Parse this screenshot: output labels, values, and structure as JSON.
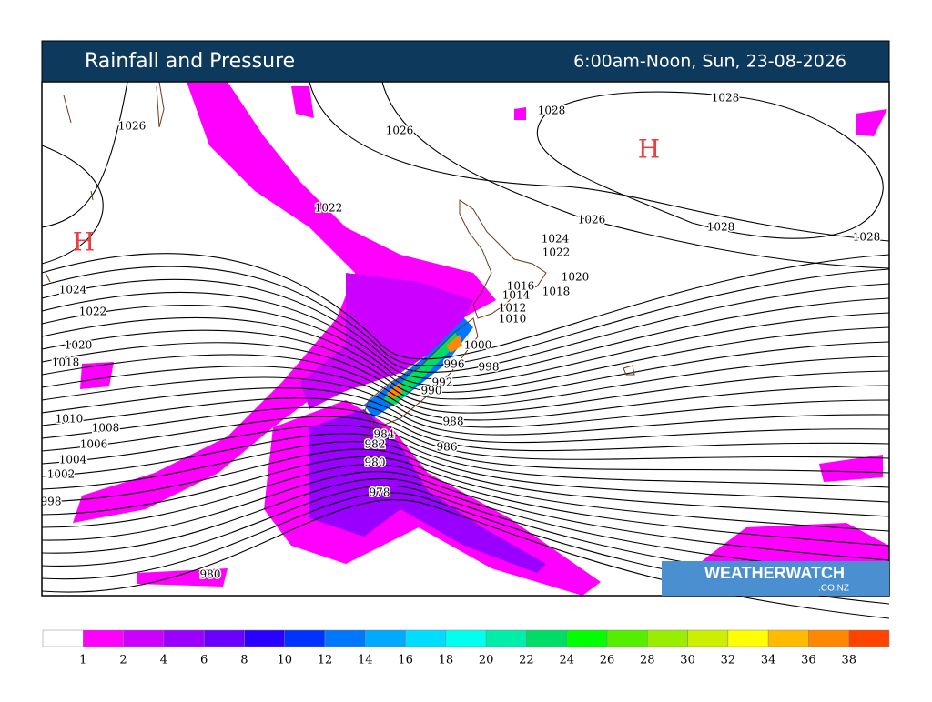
{
  "header": {
    "title": "Rainfall and Pressure",
    "subtitle": "6:00am-Noon, Sun, 23-08-2026"
  },
  "map": {
    "highs": [
      "H",
      "H"
    ],
    "isobar_labels": [
      1026,
      1026,
      1028,
      1028,
      1022,
      1026,
      1028,
      1028,
      1024,
      1022,
      1020,
      1018,
      1016,
      1014,
      1012,
      1010,
      1024,
      1022,
      1020,
      1018,
      1010,
      1008,
      1006,
      1004,
      1002,
      998,
      1000,
      998,
      996,
      992,
      990,
      988,
      986,
      984,
      982,
      980,
      978,
      980
    ]
  },
  "logo": {
    "name": "WEATHERWATCH",
    "domain": ".CO.NZ"
  },
  "legend": {
    "ticks": [
      1,
      2,
      4,
      6,
      8,
      10,
      12,
      14,
      16,
      18,
      20,
      22,
      24,
      26,
      28,
      30,
      32,
      34,
      36,
      38
    ],
    "colors": [
      "#ffffff",
      "#ff00ff",
      "#cc00ff",
      "#9900ff",
      "#6a00ff",
      "#2a00ff",
      "#0033ff",
      "#0077ff",
      "#00aaff",
      "#00ddff",
      "#00ffee",
      "#00eeaa",
      "#00dd66",
      "#00ff00",
      "#55ee00",
      "#99ee00",
      "#ccee00",
      "#ffff00",
      "#ffbb00",
      "#ff8800",
      "#ff4400"
    ]
  }
}
